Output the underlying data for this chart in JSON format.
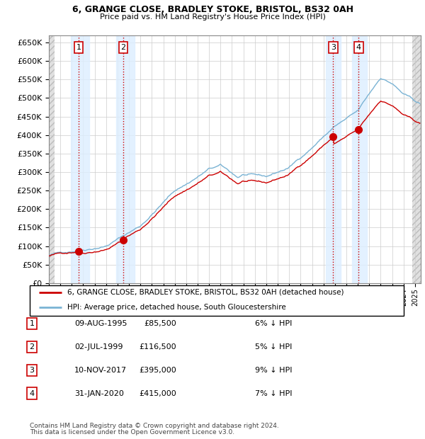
{
  "title1": "6, GRANGE CLOSE, BRADLEY STOKE, BRISTOL, BS32 0AH",
  "title2": "Price paid vs. HM Land Registry's House Price Index (HPI)",
  "legend_line1": "6, GRANGE CLOSE, BRADLEY STOKE, BRISTOL, BS32 0AH (detached house)",
  "legend_line2": "HPI: Average price, detached house, South Gloucestershire",
  "transactions": [
    {
      "num": 1,
      "date": "09-AUG-1995",
      "year": 1995.6,
      "price": 85500,
      "pct": "6% ↓ HPI"
    },
    {
      "num": 2,
      "date": "02-JUL-1999",
      "year": 1999.5,
      "price": 116500,
      "pct": "5% ↓ HPI"
    },
    {
      "num": 3,
      "date": "10-NOV-2017",
      "year": 2017.85,
      "price": 395000,
      "pct": "9% ↓ HPI"
    },
    {
      "num": 4,
      "date": "31-JAN-2020",
      "year": 2020.08,
      "price": 415000,
      "pct": "7% ↓ HPI"
    }
  ],
  "table_rows": [
    [
      "1",
      "09-AUG-1995",
      "£85,500",
      "6% ↓ HPI"
    ],
    [
      "2",
      "02-JUL-1999",
      "£116,500",
      "5% ↓ HPI"
    ],
    [
      "3",
      "10-NOV-2017",
      "£395,000",
      "9% ↓ HPI"
    ],
    [
      "4",
      "31-JAN-2020",
      "£415,000",
      "7% ↓ HPI"
    ]
  ],
  "hpi_color": "#7ab3d4",
  "sale_color": "#cc0000",
  "grid_color": "#cccccc",
  "shade_color": "#ddeeff",
  "hatch_color": "#d8d8d8",
  "footnote1": "Contains HM Land Registry data © Crown copyright and database right 2024.",
  "footnote2": "This data is licensed under the Open Government Licence v3.0.",
  "ylim": [
    0,
    670000
  ],
  "xlim_start": 1993.0,
  "xlim_end": 2025.5,
  "hatch_left_end": 1993.5,
  "hatch_right_start": 2024.75,
  "shade_regions": [
    [
      1994.9,
      1996.5
    ],
    [
      1998.9,
      2000.5
    ],
    [
      2017.2,
      2018.5
    ],
    [
      2019.5,
      2020.8
    ]
  ]
}
